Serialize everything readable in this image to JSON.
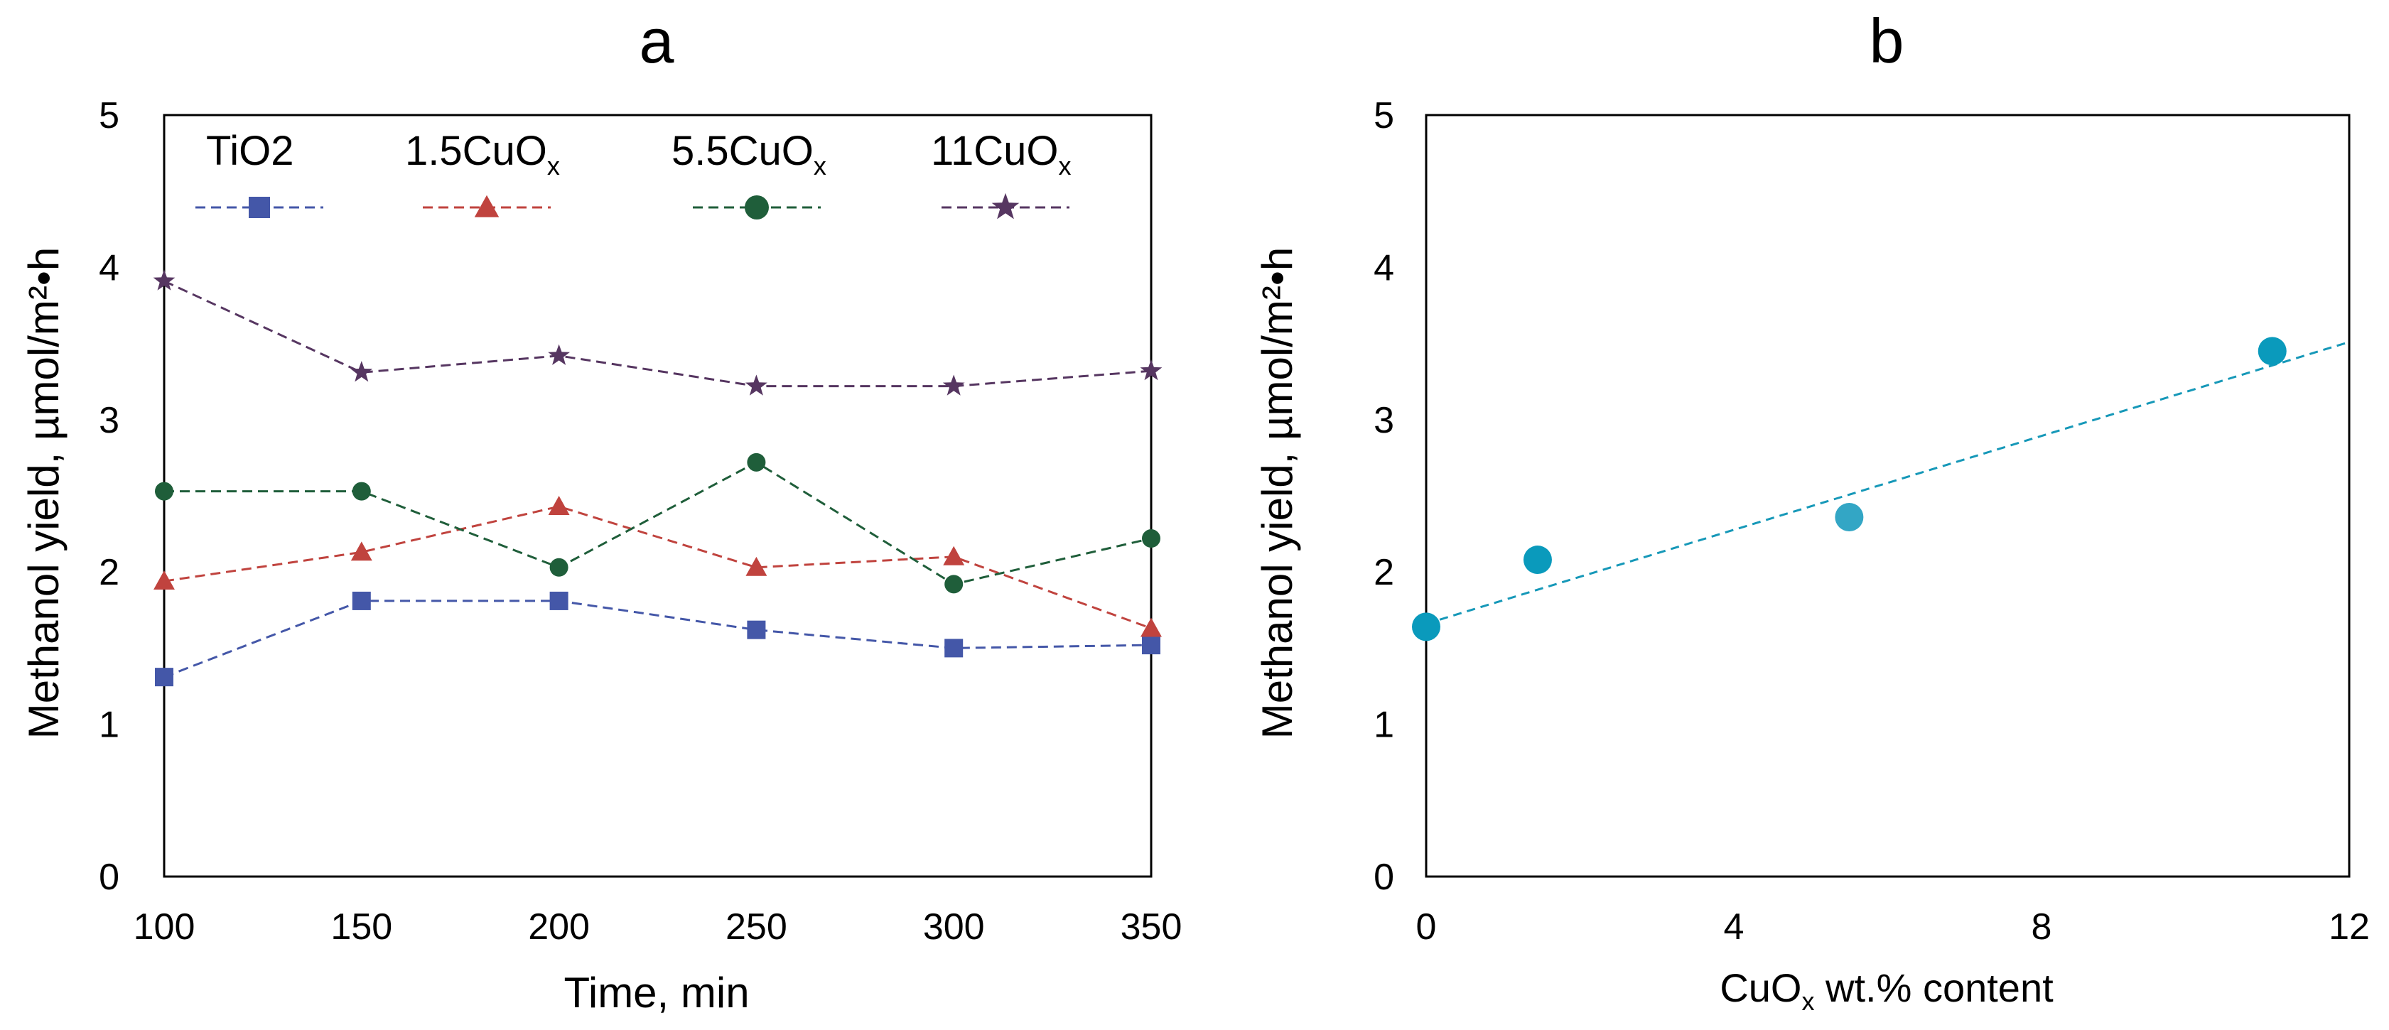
{
  "chart_data": [
    {
      "panel_label": "a",
      "type": "line",
      "xlabel": "Time, min",
      "ylabel": "Methanol yield, µmol/m²•h",
      "xlim": [
        100,
        350
      ],
      "ylim": [
        0,
        5
      ],
      "x_ticks": [
        "100",
        "150",
        "200",
        "250",
        "300",
        "350"
      ],
      "y_ticks": [
        "0",
        "1",
        "2",
        "3",
        "4",
        "5"
      ],
      "x": [
        100,
        150,
        200,
        250,
        300,
        350
      ],
      "legend_position": "top",
      "series": [
        {
          "name": "TiO",
          "name_sub": "2",
          "color": "#4457a8",
          "marker": "square",
          "values": [
            1.31,
            1.81,
            1.81,
            1.62,
            1.5,
            1.52
          ]
        },
        {
          "name": "1.5CuO",
          "name_sub": "x",
          "color": "#c0433e",
          "marker": "triangle",
          "values": [
            1.94,
            2.13,
            2.43,
            2.03,
            2.1,
            1.63
          ]
        },
        {
          "name": "5.5CuO",
          "name_sub": "x",
          "color": "#1f5e3a",
          "marker": "circle",
          "values": [
            2.53,
            2.53,
            2.03,
            2.72,
            1.92,
            2.22
          ]
        },
        {
          "name": "11CuO",
          "name_sub": "x",
          "color": "#563661",
          "marker": "star",
          "values": [
            3.91,
            3.31,
            3.42,
            3.22,
            3.22,
            3.32
          ]
        }
      ]
    },
    {
      "panel_label": "b",
      "type": "scatter",
      "xlabel_main": "CuO",
      "xlabel_sub": "x",
      "xlabel_rest": " wt.% content",
      "ylabel": "Methanol yield, µmol/m²•h",
      "xlim": [
        0,
        12
      ],
      "ylim": [
        0,
        5
      ],
      "x_ticks": [
        "0",
        "4",
        "8",
        "12"
      ],
      "y_ticks": [
        "0",
        "1",
        "2",
        "3",
        "4",
        "5"
      ],
      "points": [
        {
          "x": 0,
          "y": 1.64,
          "color": "#0a9abc"
        },
        {
          "x": 1.45,
          "y": 2.08,
          "color": "#0a9abc"
        },
        {
          "x": 5.5,
          "y": 2.36,
          "color": "#33a6c5"
        },
        {
          "x": 11,
          "y": 3.45,
          "color": "#0a9abc"
        }
      ],
      "trendline": {
        "x": [
          0,
          12
        ],
        "y": [
          1.66,
          3.51
        ],
        "color": "#1698b8",
        "style": "dashed"
      }
    }
  ]
}
